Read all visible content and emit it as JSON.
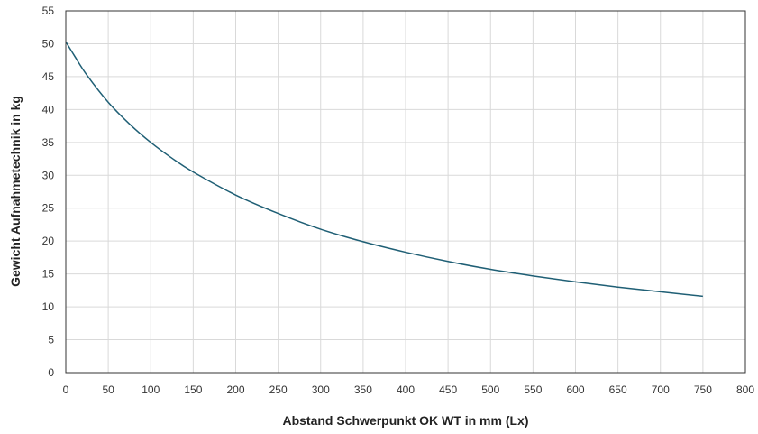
{
  "chart_data": {
    "type": "line",
    "title": "",
    "xlabel": "Abstand Schwerpunkt OK WT in mm (Lx)",
    "ylabel": "Gewicht Aufnahmetechnik in kg",
    "xlim": [
      0,
      800
    ],
    "ylim": [
      0,
      55
    ],
    "xticks": [
      0,
      50,
      100,
      150,
      200,
      250,
      300,
      350,
      400,
      450,
      500,
      550,
      600,
      650,
      700,
      750,
      800
    ],
    "yticks": [
      0,
      5,
      10,
      15,
      20,
      25,
      30,
      35,
      40,
      45,
      50,
      55
    ],
    "grid": true,
    "legend": "none",
    "series": [
      {
        "color": "#1f5f75",
        "x": [
          0,
          10,
          25,
          50,
          75,
          100,
          125,
          150,
          200,
          250,
          300,
          350,
          400,
          450,
          500,
          550,
          600,
          650,
          700,
          750
        ],
        "y": [
          50.3,
          48.2,
          45.2,
          41.1,
          37.8,
          35.0,
          32.6,
          30.5,
          27.0,
          24.2,
          21.8,
          19.9,
          18.3,
          16.9,
          15.7,
          14.7,
          13.8,
          13.0,
          12.3,
          11.6
        ]
      }
    ]
  }
}
